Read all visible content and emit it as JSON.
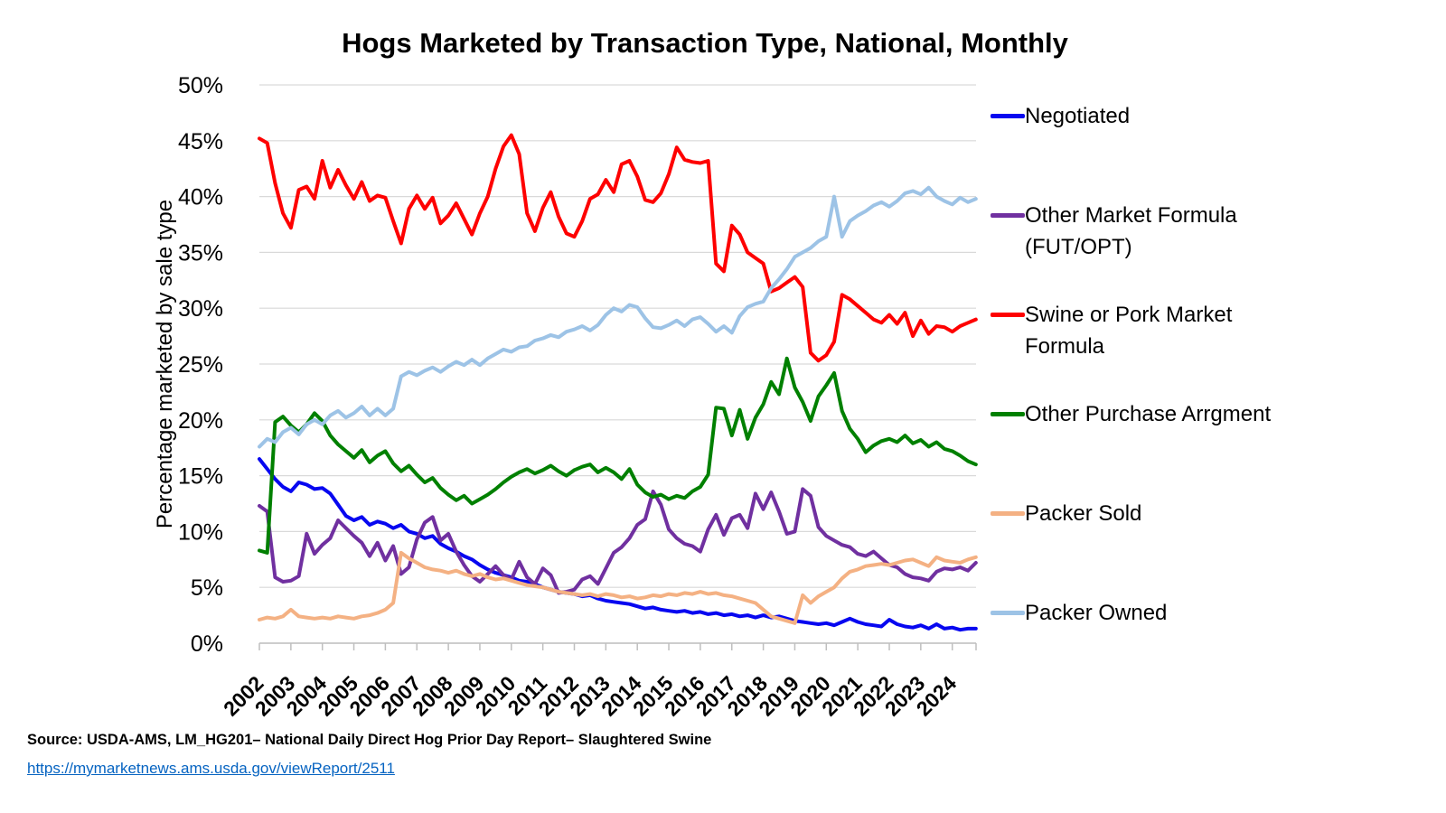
{
  "title": "Hogs Marketed by Transaction Type, National, Monthly",
  "source": {
    "text": "Source: USDA-AMS, LM_HG201– National Daily Direct Hog Prior Day Report– Slaughtered Swine",
    "link": "https://mymarketnews.ams.usda.gov/viewReport/2511"
  },
  "chart_data": {
    "type": "line",
    "title": "Hogs Marketed by Transaction Type, National, Monthly",
    "xlabel": "",
    "ylabel": "Percentage marketed by sale type",
    "ylim": [
      0,
      50
    ],
    "ytick_step": 5,
    "ytick_labels": [
      "0%",
      "5%",
      "10%",
      "15%",
      "20%",
      "25%",
      "30%",
      "35%",
      "40%",
      "45%",
      "50%"
    ],
    "xtick_labels": [
      "2002",
      "2003",
      "2004",
      "2005",
      "2006",
      "2007",
      "2008",
      "2009",
      "2010",
      "2011",
      "2012",
      "2013",
      "2014",
      "2015",
      "2016",
      "2017",
      "2018",
      "2019",
      "2020",
      "2021",
      "2022",
      "2023",
      "2024"
    ],
    "x_start_year": 2002,
    "x_step_years": 0.25,
    "grid": true,
    "legend_position": "right",
    "grid_color": "#D9D9D9",
    "axis_color": "#BFBFBF",
    "series": [
      {
        "name": "Negotiated",
        "color": "#0707F0",
        "values": [
          16.5,
          15.6,
          14.7,
          14.0,
          13.6,
          14.4,
          14.2,
          13.8,
          13.9,
          13.4,
          12.4,
          11.4,
          11.0,
          11.3,
          10.6,
          10.9,
          10.7,
          10.3,
          10.6,
          10.0,
          9.8,
          9.4,
          9.6,
          8.9,
          8.5,
          8.2,
          7.8,
          7.5,
          7.0,
          6.6,
          6.3,
          6.1,
          5.9,
          5.6,
          5.5,
          5.3,
          5.0,
          4.8,
          4.6,
          4.5,
          4.4,
          4.2,
          4.3,
          4.0,
          3.8,
          3.7,
          3.6,
          3.5,
          3.3,
          3.1,
          3.2,
          3.0,
          2.9,
          2.8,
          2.9,
          2.7,
          2.8,
          2.6,
          2.7,
          2.5,
          2.6,
          2.4,
          2.5,
          2.3,
          2.5,
          2.3,
          2.4,
          2.2,
          2.0,
          1.9,
          1.8,
          1.7,
          1.8,
          1.6,
          1.9,
          2.2,
          1.9,
          1.7,
          1.6,
          1.5,
          2.1,
          1.7,
          1.5,
          1.4,
          1.6,
          1.3,
          1.7,
          1.3,
          1.4,
          1.2,
          1.3,
          1.3
        ]
      },
      {
        "name": "Other Market Formula (FUT/OPT)",
        "color": "#7030A0",
        "values": [
          12.3,
          11.8,
          5.9,
          5.5,
          5.6,
          6.0,
          9.8,
          8.0,
          8.8,
          9.4,
          11.0,
          10.3,
          9.6,
          9.0,
          7.8,
          9.0,
          7.4,
          8.7,
          6.2,
          6.8,
          9.3,
          10.8,
          11.3,
          9.2,
          9.8,
          8.2,
          7.0,
          6.0,
          5.5,
          6.2,
          6.9,
          6.1,
          5.7,
          7.3,
          5.9,
          5.3,
          6.7,
          6.1,
          4.5,
          4.6,
          4.8,
          5.7,
          6.0,
          5.3,
          6.7,
          8.1,
          8.6,
          9.4,
          10.6,
          11.1,
          13.6,
          12.4,
          10.2,
          9.4,
          8.9,
          8.7,
          8.2,
          10.2,
          11.5,
          9.7,
          11.2,
          11.5,
          10.3,
          13.4,
          12.0,
          13.5,
          11.8,
          9.8,
          10.0,
          13.8,
          13.2,
          10.4,
          9.6,
          9.2,
          8.8,
          8.6,
          8.0,
          7.8,
          8.2,
          7.6,
          7.0,
          6.8,
          6.2,
          5.9,
          5.8,
          5.6,
          6.4,
          6.7,
          6.6,
          6.8,
          6.5,
          7.2
        ]
      },
      {
        "name": "Swine or Pork Market Formula",
        "color": "#FE0000",
        "values": [
          45.2,
          44.8,
          41.2,
          38.5,
          37.2,
          40.6,
          40.9,
          39.8,
          43.2,
          40.8,
          42.4,
          41.0,
          39.8,
          41.3,
          39.6,
          40.1,
          39.9,
          37.8,
          35.8,
          38.9,
          40.1,
          38.9,
          39.9,
          37.6,
          38.3,
          39.4,
          38.0,
          36.6,
          38.5,
          40.0,
          42.5,
          44.5,
          45.5,
          43.8,
          38.5,
          36.9,
          39.0,
          40.4,
          38.2,
          36.7,
          36.4,
          37.8,
          39.8,
          40.2,
          41.5,
          40.4,
          42.9,
          43.2,
          41.8,
          39.7,
          39.5,
          40.3,
          42.0,
          44.4,
          43.3,
          43.1,
          43.0,
          43.2,
          34.0,
          33.3,
          37.4,
          36.6,
          35.0,
          34.5,
          34.0,
          31.5,
          31.8,
          32.3,
          32.8,
          31.9,
          26.0,
          25.3,
          25.8,
          27.0,
          31.2,
          30.8,
          30.2,
          29.6,
          29.0,
          28.7,
          29.4,
          28.6,
          29.6,
          27.5,
          28.9,
          27.7,
          28.4,
          28.3,
          27.9,
          28.4,
          28.7,
          29.0
        ]
      },
      {
        "name": "Other Purchase Arrgment",
        "color": "#008000",
        "values": [
          8.3,
          8.1,
          19.8,
          20.3,
          19.5,
          18.9,
          19.6,
          20.6,
          19.9,
          18.6,
          17.8,
          17.2,
          16.6,
          17.3,
          16.2,
          16.8,
          17.2,
          16.1,
          15.4,
          15.9,
          15.1,
          14.4,
          14.8,
          13.9,
          13.3,
          12.8,
          13.2,
          12.5,
          12.9,
          13.3,
          13.8,
          14.4,
          14.9,
          15.3,
          15.6,
          15.2,
          15.5,
          15.9,
          15.4,
          15.0,
          15.5,
          15.8,
          16.0,
          15.3,
          15.7,
          15.3,
          14.7,
          15.6,
          14.2,
          13.5,
          13.1,
          13.3,
          12.9,
          13.2,
          13.0,
          13.6,
          14.0,
          15.1,
          21.1,
          21.0,
          18.6,
          20.9,
          18.3,
          20.2,
          21.4,
          23.4,
          22.3,
          25.5,
          22.9,
          21.6,
          19.9,
          22.1,
          23.1,
          24.2,
          20.8,
          19.2,
          18.3,
          17.1,
          17.7,
          18.1,
          18.3,
          18.0,
          18.6,
          17.9,
          18.2,
          17.6,
          18.0,
          17.4,
          17.2,
          16.8,
          16.3,
          16.0
        ]
      },
      {
        "name": "Packer Sold",
        "color": "#F4B183",
        "values": [
          2.1,
          2.3,
          2.2,
          2.4,
          3.0,
          2.4,
          2.3,
          2.2,
          2.3,
          2.2,
          2.4,
          2.3,
          2.2,
          2.4,
          2.5,
          2.7,
          3.0,
          3.6,
          8.1,
          7.6,
          7.2,
          6.8,
          6.6,
          6.5,
          6.3,
          6.5,
          6.2,
          6.0,
          6.2,
          5.9,
          5.7,
          5.8,
          5.6,
          5.4,
          5.2,
          5.1,
          5.0,
          4.8,
          4.6,
          4.5,
          4.4,
          4.3,
          4.4,
          4.2,
          4.4,
          4.3,
          4.1,
          4.2,
          4.0,
          4.1,
          4.3,
          4.2,
          4.4,
          4.3,
          4.5,
          4.4,
          4.6,
          4.4,
          4.5,
          4.3,
          4.2,
          4.0,
          3.8,
          3.6,
          3.0,
          2.4,
          2.2,
          2.0,
          1.8,
          4.3,
          3.6,
          4.2,
          4.6,
          5.0,
          5.8,
          6.4,
          6.6,
          6.9,
          7.0,
          7.1,
          7.0,
          7.2,
          7.4,
          7.5,
          7.2,
          6.9,
          7.7,
          7.4,
          7.3,
          7.2,
          7.5,
          7.7
        ]
      },
      {
        "name": "Packer Owned",
        "color": "#9DC3E6",
        "values": [
          17.6,
          18.3,
          18.0,
          18.9,
          19.3,
          18.7,
          19.6,
          20.0,
          19.6,
          20.4,
          20.8,
          20.2,
          20.6,
          21.2,
          20.4,
          21.0,
          20.4,
          21.0,
          23.9,
          24.3,
          24.0,
          24.4,
          24.7,
          24.3,
          24.8,
          25.2,
          24.9,
          25.4,
          24.9,
          25.5,
          25.9,
          26.3,
          26.1,
          26.5,
          26.6,
          27.1,
          27.3,
          27.6,
          27.4,
          27.9,
          28.1,
          28.4,
          28.0,
          28.5,
          29.4,
          30.0,
          29.7,
          30.3,
          30.1,
          29.1,
          28.3,
          28.2,
          28.5,
          28.9,
          28.4,
          29.0,
          29.2,
          28.6,
          27.9,
          28.4,
          27.8,
          29.3,
          30.1,
          30.4,
          30.6,
          31.8,
          32.6,
          33.5,
          34.6,
          35.0,
          35.4,
          36.0,
          36.4,
          40.0,
          36.4,
          37.8,
          38.3,
          38.7,
          39.2,
          39.5,
          39.1,
          39.6,
          40.3,
          40.5,
          40.2,
          40.8,
          40.0,
          39.6,
          39.3,
          39.9,
          39.5,
          39.8
        ]
      }
    ]
  }
}
